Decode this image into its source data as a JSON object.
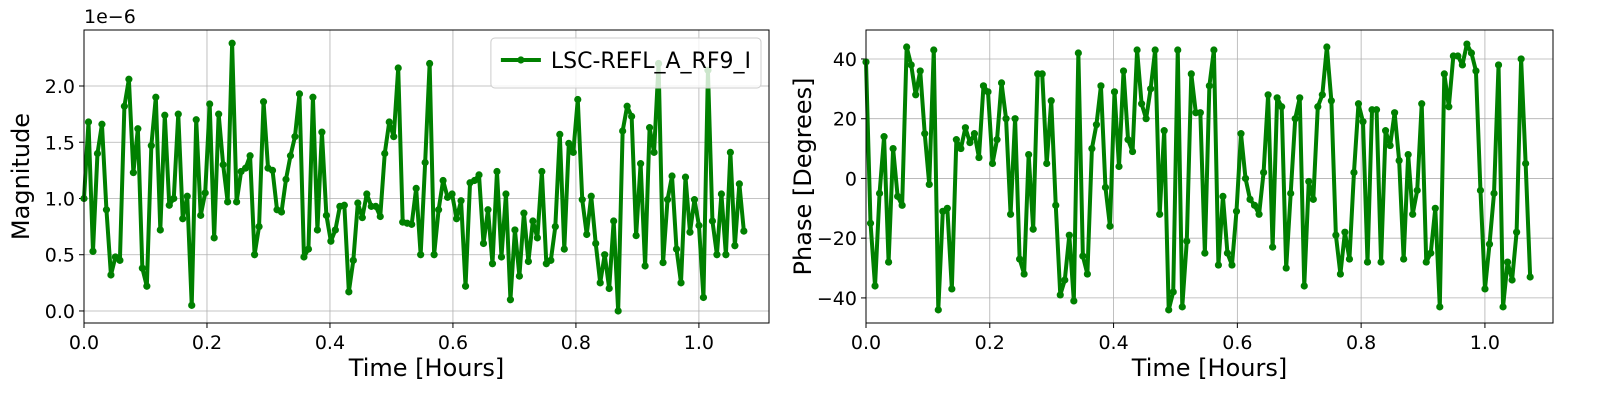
{
  "chart_data": [
    {
      "type": "line",
      "xlabel": "Time [Hours]",
      "ylabel": "Magnitude",
      "y_offset_label": "1e−6",
      "legend": "upper right",
      "grid": true,
      "xlim": [
        0,
        1.114
      ],
      "ylim": [
        -0.107,
        2.498
      ],
      "xticks": [
        {
          "value": 0,
          "label": "0.0"
        },
        0.2,
        0.4,
        0.6,
        0.8,
        {
          "value": 1,
          "label": "1.0"
        }
      ],
      "yticks": [
        {
          "value": 0,
          "label": "0.0"
        },
        0.5,
        {
          "value": 1,
          "label": "1.0"
        },
        1.5,
        {
          "value": 2,
          "label": "2.0"
        }
      ],
      "x": [
        0,
        0.0073,
        0.0146,
        0.0219,
        0.0292,
        0.0365,
        0.0438,
        0.0511,
        0.0584,
        0.0657,
        0.073,
        0.0803,
        0.0876,
        0.0949,
        0.1022,
        0.1095,
        0.1168,
        0.1241,
        0.1314,
        0.1387,
        0.146,
        0.1533,
        0.1606,
        0.1679,
        0.1752,
        0.1825,
        0.1898,
        0.1971,
        0.2044,
        0.2117,
        0.219,
        0.2263,
        0.2336,
        0.2409,
        0.2482,
        0.2555,
        0.2628,
        0.2701,
        0.2774,
        0.2847,
        0.292,
        0.2993,
        0.3066,
        0.3139,
        0.3212,
        0.3285,
        0.3358,
        0.3431,
        0.3504,
        0.3577,
        0.365,
        0.3723,
        0.3796,
        0.3869,
        0.3942,
        0.4015,
        0.4088,
        0.4161,
        0.4234,
        0.4307,
        0.438,
        0.4453,
        0.4526,
        0.4599,
        0.4672,
        0.4745,
        0.4818,
        0.4891,
        0.4964,
        0.5037,
        0.511,
        0.5183,
        0.5256,
        0.5329,
        0.5402,
        0.5475,
        0.5548,
        0.5621,
        0.5694,
        0.5767,
        0.584,
        0.5913,
        0.5986,
        0.6059,
        0.6132,
        0.6205,
        0.6278,
        0.6351,
        0.6424,
        0.6497,
        0.657,
        0.6643,
        0.6716,
        0.6789,
        0.6862,
        0.6935,
        0.7008,
        0.7081,
        0.7154,
        0.7227,
        0.73,
        0.7373,
        0.7446,
        0.7519,
        0.7592,
        0.7665,
        0.7738,
        0.7811,
        0.7884,
        0.7957,
        0.803,
        0.8103,
        0.8176,
        0.8249,
        0.8322,
        0.8395,
        0.8468,
        0.8541,
        0.8614,
        0.8687,
        0.876,
        0.8833,
        0.8906,
        0.8979,
        0.9052,
        0.9125,
        0.9198,
        0.9271,
        0.9344,
        0.9417,
        0.949,
        0.9563,
        0.9636,
        0.9709,
        0.9782,
        0.9855,
        0.9928,
        1.0001,
        1.0074,
        1.0147,
        1.022,
        1.0293,
        1.0366,
        1.0439,
        1.0512,
        1.0585,
        1.0658,
        1.0731
      ],
      "series": [
        {
          "name": "LSC-REFL_A_RF9_I",
          "color": "#008000",
          "values": [
            1.0,
            1.68,
            0.53,
            1.4,
            1.66,
            0.9,
            0.32,
            0.48,
            0.45,
            1.82,
            2.06,
            1.23,
            1.62,
            0.38,
            0.22,
            1.47,
            1.9,
            0.72,
            1.74,
            0.94,
            1.0,
            1.75,
            0.82,
            1.02,
            0.05,
            1.7,
            0.85,
            1.05,
            1.84,
            0.65,
            1.75,
            1.3,
            0.97,
            2.38,
            0.97,
            1.24,
            1.27,
            1.38,
            0.5,
            0.75,
            1.86,
            1.27,
            1.25,
            0.9,
            0.88,
            1.17,
            1.38,
            1.55,
            1.93,
            0.48,
            0.55,
            1.9,
            0.72,
            1.59,
            0.85,
            0.62,
            0.72,
            0.93,
            0.94,
            0.17,
            0.45,
            0.96,
            0.83,
            1.04,
            0.93,
            0.93,
            0.84,
            1.4,
            1.68,
            1.55,
            2.16,
            0.79,
            0.78,
            0.77,
            1.09,
            0.5,
            1.32,
            2.2,
            0.5,
            0.9,
            1.16,
            1.01,
            1.04,
            0.82,
            0.98,
            0.22,
            1.14,
            1.16,
            1.21,
            0.6,
            0.9,
            0.42,
            1.24,
            0.48,
            1.04,
            0.1,
            0.72,
            0.31,
            0.87,
            0.44,
            0.8,
            0.65,
            1.24,
            0.42,
            0.45,
            0.75,
            1.57,
            0.55,
            1.49,
            1.41,
            1.88,
            0.99,
            0.68,
            1.02,
            0.6,
            0.25,
            0.5,
            0.2,
            0.8,
            0.0,
            1.6,
            1.82,
            1.73,
            0.67,
            1.31,
            0.4,
            1.63,
            1.41,
            2.2,
            0.43,
            0.99,
            1.2,
            0.55,
            0.25,
            1.19,
            0.7,
            0.99,
            0.76,
            0.12,
            2.14,
            0.8,
            0.5,
            1.04,
            0.5,
            1.41,
            0.58,
            1.13,
            0.71
          ]
        }
      ]
    },
    {
      "type": "line",
      "xlabel": "Time [Hours]",
      "ylabel": "Phase [Degrees]",
      "grid": true,
      "xlim": [
        0,
        1.11
      ],
      "ylim": [
        -48.4,
        49.7
      ],
      "xticks": [
        {
          "value": 0,
          "label": "0.0"
        },
        0.2,
        0.4,
        0.6,
        0.8,
        {
          "value": 1,
          "label": "1.0"
        }
      ],
      "yticks": [
        {
          "value": -40,
          "label": "−40"
        },
        {
          "value": -20,
          "label": "−20"
        },
        0,
        20,
        40
      ],
      "x": [
        0,
        0.0073,
        0.0146,
        0.0219,
        0.0292,
        0.0365,
        0.0438,
        0.0511,
        0.0584,
        0.0657,
        0.073,
        0.0803,
        0.0876,
        0.0949,
        0.1022,
        0.1095,
        0.1168,
        0.1241,
        0.1314,
        0.1387,
        0.146,
        0.1533,
        0.1606,
        0.1679,
        0.1752,
        0.1825,
        0.1898,
        0.1971,
        0.2044,
        0.2117,
        0.219,
        0.2263,
        0.2336,
        0.2409,
        0.2482,
        0.2555,
        0.2628,
        0.2701,
        0.2774,
        0.2847,
        0.292,
        0.2993,
        0.3066,
        0.3139,
        0.3212,
        0.3285,
        0.3358,
        0.3431,
        0.3504,
        0.3577,
        0.365,
        0.3723,
        0.3796,
        0.3869,
        0.3942,
        0.4015,
        0.4088,
        0.4161,
        0.4234,
        0.4307,
        0.438,
        0.4453,
        0.4526,
        0.4599,
        0.4672,
        0.4745,
        0.4818,
        0.4891,
        0.4964,
        0.5037,
        0.511,
        0.5183,
        0.5256,
        0.5329,
        0.5402,
        0.5475,
        0.5548,
        0.5621,
        0.5694,
        0.5767,
        0.584,
        0.5913,
        0.5986,
        0.6059,
        0.6132,
        0.6205,
        0.6278,
        0.6351,
        0.6424,
        0.6497,
        0.657,
        0.6643,
        0.6716,
        0.6789,
        0.6862,
        0.6935,
        0.7008,
        0.7081,
        0.7154,
        0.7227,
        0.73,
        0.7373,
        0.7446,
        0.7519,
        0.7592,
        0.7665,
        0.7738,
        0.7811,
        0.7884,
        0.7957,
        0.803,
        0.8103,
        0.8176,
        0.8249,
        0.8322,
        0.8395,
        0.8468,
        0.8541,
        0.8614,
        0.8687,
        0.876,
        0.8833,
        0.8906,
        0.8979,
        0.9052,
        0.9125,
        0.9198,
        0.9271,
        0.9344,
        0.9417,
        0.949,
        0.9563,
        0.9636,
        0.9709,
        0.9782,
        0.9855,
        0.9928,
        1.0001,
        1.0074,
        1.0147,
        1.022,
        1.0293,
        1.0366,
        1.0439,
        1.0512,
        1.0585,
        1.0658,
        1.0731
      ],
      "series": [
        {
          "color": "#008000",
          "values": [
            39,
            -15,
            -36,
            -5,
            14,
            -28,
            10,
            -6,
            -9,
            44,
            38,
            28,
            36,
            15,
            -2,
            43,
            -44,
            -11,
            -10,
            -37,
            13,
            10,
            17,
            12,
            15,
            7,
            31,
            29,
            5,
            13,
            32,
            20,
            -12,
            20,
            -27,
            -32,
            8,
            -17,
            35,
            35,
            5,
            26,
            -9,
            -39,
            -34,
            -19,
            -41,
            42,
            -26,
            -32,
            10,
            18,
            31,
            -3,
            -16,
            29,
            4,
            36,
            13,
            9,
            43,
            25,
            20,
            30,
            43,
            -12,
            16,
            -44,
            -38,
            43,
            -43,
            -21,
            35,
            22,
            22,
            -25,
            31,
            43,
            -29,
            -6,
            -25,
            -29,
            -11,
            15,
            0,
            -7,
            -9,
            -12,
            2,
            28,
            -23,
            27,
            24,
            -30,
            -5,
            20,
            27,
            -36,
            -1,
            -7,
            24,
            28,
            44,
            26,
            -19,
            -32,
            -18,
            -27,
            2,
            25,
            19,
            -28,
            23,
            23,
            -28,
            16,
            11,
            22,
            6,
            -27,
            8,
            -12,
            -4,
            25,
            -28,
            -25,
            -10,
            -43,
            35,
            24,
            41,
            41,
            38,
            45,
            42,
            36,
            -4,
            -37,
            -22,
            -5,
            38,
            -43,
            -28,
            -34,
            -18,
            40,
            5,
            -33
          ]
        }
      ]
    }
  ]
}
